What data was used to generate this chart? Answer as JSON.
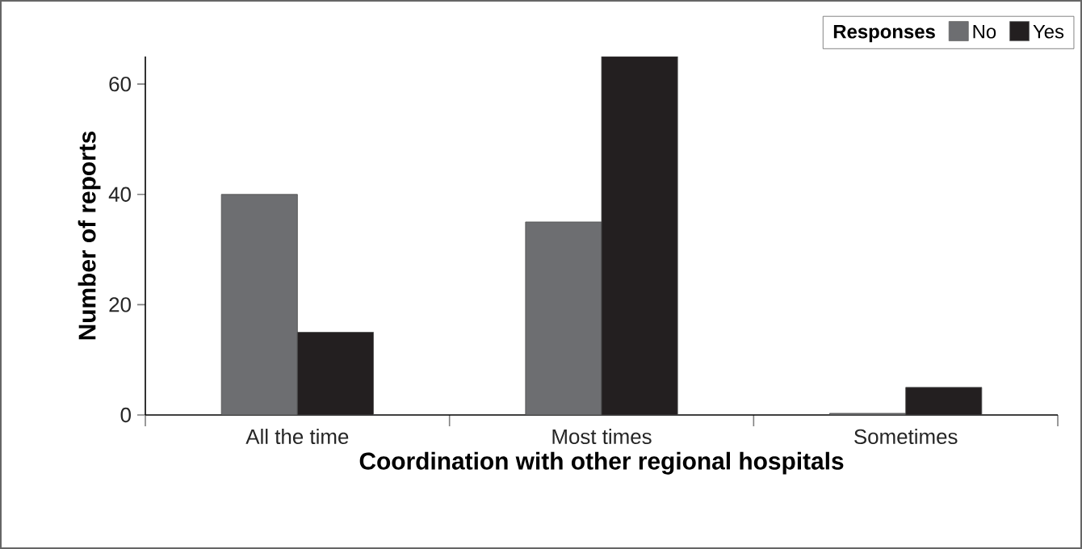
{
  "chart_data": {
    "type": "bar",
    "xlabel": "Coordination with other regional hospitals",
    "ylabel": "Number of reports",
    "legend_title": "Responses",
    "legend": "top right",
    "categories": [
      "All the time",
      "Most times",
      "Sometimes"
    ],
    "series": [
      {
        "name": "No",
        "color": "#6d6e71",
        "values": [
          40,
          35,
          0.3
        ]
      },
      {
        "name": "Yes",
        "color": "#231f20",
        "values": [
          15,
          65,
          5
        ]
      }
    ],
    "ylim": [
      0,
      65
    ],
    "yticks": [
      0,
      20,
      40,
      60
    ]
  }
}
